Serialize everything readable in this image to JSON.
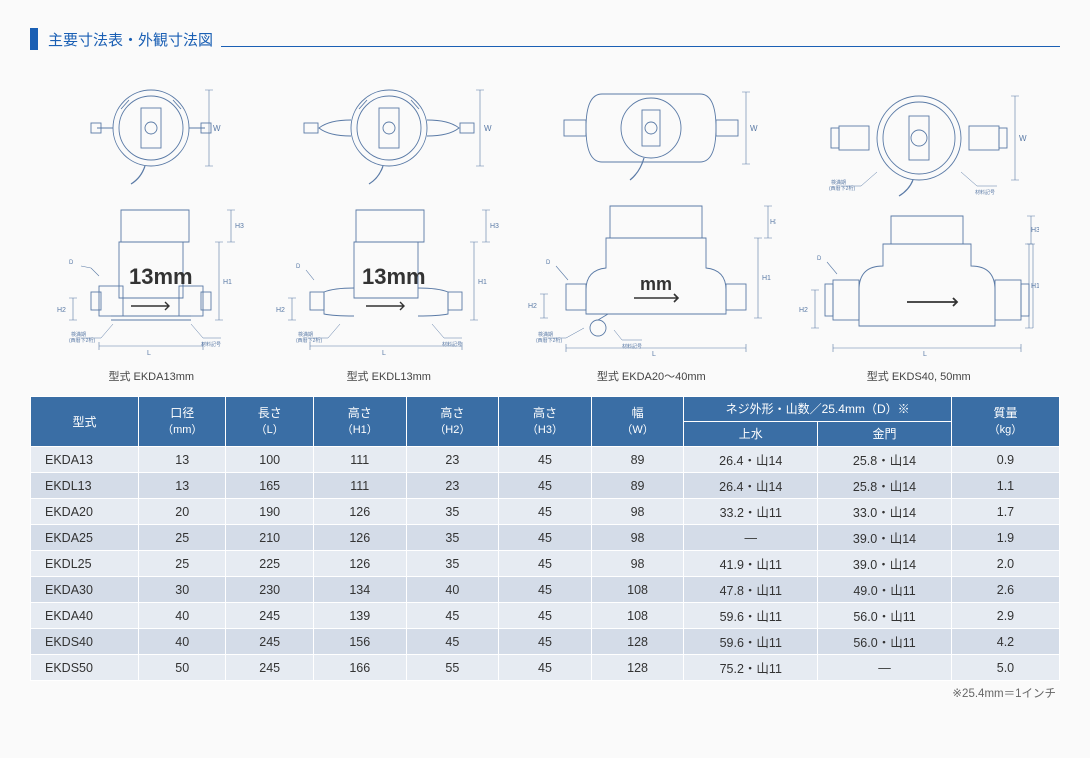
{
  "section_title": "主要寸法表・外観寸法図",
  "figures": [
    {
      "label": "型式 EKDA13mm"
    },
    {
      "label": "型式 EKDL13mm"
    },
    {
      "label": "型式 EKDA20〜40mm"
    },
    {
      "label": "型式 EKDS40, 50mm"
    }
  ],
  "table": {
    "headers": {
      "model": "型式",
      "diameter": {
        "l1": "口径",
        "l2": "（mm）"
      },
      "length": {
        "l1": "長さ",
        "l2": "（L）"
      },
      "h1": {
        "l1": "高さ",
        "l2": "（H1）"
      },
      "h2": {
        "l1": "高さ",
        "l2": "（H2）"
      },
      "h3": {
        "l1": "高さ",
        "l2": "（H3）"
      },
      "width": {
        "l1": "幅",
        "l2": "（W）"
      },
      "thread_group": "ネジ外形・山数／25.4mm（D）※",
      "thread_jousui": "上水",
      "thread_kinmon": "金門",
      "mass": {
        "l1": "質量",
        "l2": "（kg）"
      }
    },
    "rows": [
      {
        "model": "EKDA13",
        "dia": "13",
        "len": "100",
        "h1": "111",
        "h2": "23",
        "h3": "45",
        "w": "89",
        "jousui": "26.4・山14",
        "kinmon": "25.8・山14",
        "mass": "0.9"
      },
      {
        "model": "EKDL13",
        "dia": "13",
        "len": "165",
        "h1": "111",
        "h2": "23",
        "h3": "45",
        "w": "89",
        "jousui": "26.4・山14",
        "kinmon": "25.8・山14",
        "mass": "1.1"
      },
      {
        "model": "EKDA20",
        "dia": "20",
        "len": "190",
        "h1": "126",
        "h2": "35",
        "h3": "45",
        "w": "98",
        "jousui": "33.2・山11",
        "kinmon": "33.0・山14",
        "mass": "1.7"
      },
      {
        "model": "EKDA25",
        "dia": "25",
        "len": "210",
        "h1": "126",
        "h2": "35",
        "h3": "45",
        "w": "98",
        "jousui": "—",
        "kinmon": "39.0・山14",
        "mass": "1.9"
      },
      {
        "model": "EKDL25",
        "dia": "25",
        "len": "225",
        "h1": "126",
        "h2": "35",
        "h3": "45",
        "w": "98",
        "jousui": "41.9・山11",
        "kinmon": "39.0・山14",
        "mass": "2.0"
      },
      {
        "model": "EKDA30",
        "dia": "30",
        "len": "230",
        "h1": "134",
        "h2": "40",
        "h3": "45",
        "w": "108",
        "jousui": "47.8・山11",
        "kinmon": "49.0・山11",
        "mass": "2.6"
      },
      {
        "model": "EKDA40",
        "dia": "40",
        "len": "245",
        "h1": "139",
        "h2": "45",
        "h3": "45",
        "w": "108",
        "jousui": "59.6・山11",
        "kinmon": "56.0・山11",
        "mass": "2.9"
      },
      {
        "model": "EKDS40",
        "dia": "40",
        "len": "245",
        "h1": "156",
        "h2": "45",
        "h3": "45",
        "w": "128",
        "jousui": "59.6・山11",
        "kinmon": "56.0・山11",
        "mass": "4.2"
      },
      {
        "model": "EKDS50",
        "dia": "50",
        "len": "245",
        "h1": "166",
        "h2": "55",
        "h3": "45",
        "w": "128",
        "jousui": "75.2・山11",
        "kinmon": "—",
        "mass": "5.0"
      }
    ],
    "col_widths_pct": [
      10.5,
      8.5,
      8.5,
      9,
      9,
      9,
      9,
      13,
      13,
      10.5
    ],
    "header_bg": "#3a6ea5",
    "row_colors": {
      "even": "#e6ebf2",
      "odd": "#d4dce8"
    }
  },
  "footnote": "※25.4mm＝1インチ",
  "diagram_style": {
    "stroke": "#5a7aa6",
    "stroke_width": 0.9,
    "dim_stroke": "#5a7aa6",
    "text_fill": "#5a7aa6",
    "accent_text_fill": "#333"
  }
}
